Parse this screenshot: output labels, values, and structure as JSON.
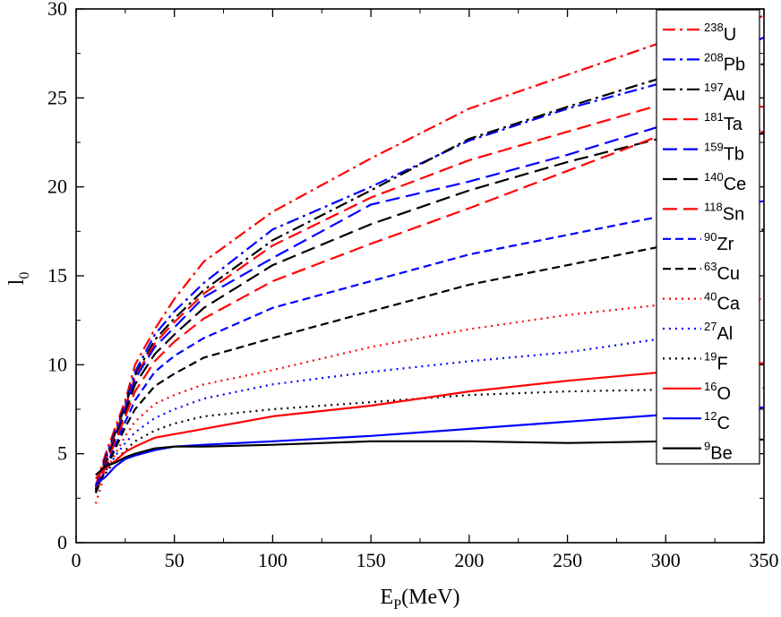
{
  "chart_data": {
    "type": "line",
    "xlabel": "E",
    "xlabel_sub": "P",
    "xlabel_unit": "(MeV)",
    "ylabel": "l",
    "ylabel_sub": "0",
    "xlim": [
      0,
      350
    ],
    "ylim": [
      0,
      30
    ],
    "xticks": [
      0,
      50,
      100,
      150,
      200,
      250,
      300,
      350
    ],
    "yticks": [
      0,
      5,
      10,
      15,
      20,
      25,
      30
    ],
    "legend_position": "top-right",
    "series": [
      {
        "name": "U",
        "mass": "238",
        "color": "#ff0000",
        "dash": "dashdot",
        "x": [
          10,
          15,
          20,
          25,
          30,
          40,
          50,
          65,
          100,
          150,
          200,
          250,
          300,
          350
        ],
        "y": [
          3.2,
          5.0,
          6.5,
          8.0,
          10.0,
          12.0,
          13.7,
          15.8,
          18.6,
          21.6,
          24.4,
          26.3,
          28.2,
          29.6
        ]
      },
      {
        "name": "Pb",
        "mass": "208",
        "color": "#0000ff",
        "dash": "dashdot",
        "x": [
          10,
          15,
          20,
          25,
          30,
          40,
          50,
          65,
          100,
          150,
          200,
          250,
          300,
          350
        ],
        "y": [
          3.1,
          4.8,
          6.3,
          7.8,
          9.6,
          11.7,
          13.0,
          14.6,
          17.6,
          20.0,
          22.6,
          24.4,
          25.9,
          28.4
        ]
      },
      {
        "name": "Au",
        "mass": "197",
        "color": "#000000",
        "dash": "dashdot",
        "x": [
          10,
          15,
          20,
          25,
          30,
          40,
          50,
          65,
          100,
          150,
          200,
          250,
          300,
          350
        ],
        "y": [
          3.0,
          4.7,
          6.2,
          7.7,
          9.4,
          11.4,
          12.6,
          14.2,
          17.0,
          19.8,
          22.7,
          24.5,
          26.2,
          26.9
        ]
      },
      {
        "name": "Ta",
        "mass": "181",
        "color": "#ff0000",
        "dash": "longdash",
        "x": [
          10,
          15,
          20,
          25,
          30,
          40,
          50,
          65,
          100,
          150,
          200,
          250,
          300,
          350
        ],
        "y": [
          3.0,
          4.6,
          6.1,
          7.6,
          9.3,
          11.2,
          12.4,
          14.0,
          16.7,
          19.4,
          21.5,
          23.1,
          24.7,
          24.5
        ]
      },
      {
        "name": "Tb",
        "mass": "159",
        "color": "#0000ff",
        "dash": "longdash",
        "x": [
          10,
          15,
          20,
          25,
          30,
          40,
          50,
          65,
          100,
          150,
          200,
          250,
          300,
          350
        ],
        "y": [
          2.9,
          4.5,
          6.0,
          7.5,
          9.2,
          11.0,
          12.1,
          13.8,
          16.0,
          19.0,
          20.3,
          21.8,
          23.5,
          23.2
        ]
      },
      {
        "name": "Ce",
        "mass": "140",
        "color": "#000000",
        "dash": "longdash",
        "x": [
          10,
          15,
          20,
          25,
          30,
          40,
          50,
          65,
          100,
          150,
          200,
          250,
          300,
          350
        ],
        "y": [
          2.9,
          4.4,
          5.9,
          7.3,
          8.9,
          10.6,
          11.7,
          13.2,
          15.6,
          17.9,
          19.8,
          21.4,
          22.8,
          23.0
        ]
      },
      {
        "name": "Sn",
        "mass": "118",
        "color": "#ff0000",
        "dash": "longdash",
        "x": [
          10,
          15,
          20,
          25,
          30,
          40,
          50,
          65,
          100,
          150,
          200,
          250,
          300,
          350
        ],
        "y": [
          2.8,
          4.3,
          5.7,
          7.1,
          8.5,
          10.2,
          11.3,
          12.6,
          14.7,
          16.8,
          18.8,
          20.9,
          23.0,
          23.1
        ]
      },
      {
        "name": "Zr",
        "mass": "90",
        "color": "#0000ff",
        "dash": "dash",
        "x": [
          10,
          15,
          20,
          25,
          30,
          40,
          50,
          65,
          100,
          150,
          200,
          250,
          300,
          350
        ],
        "y": [
          2.8,
          4.2,
          5.5,
          6.8,
          8.0,
          9.6,
          10.5,
          11.5,
          13.2,
          14.7,
          16.2,
          17.3,
          18.4,
          19.2
        ]
      },
      {
        "name": "Cu",
        "mass": "63",
        "color": "#000000",
        "dash": "dash",
        "x": [
          10,
          15,
          20,
          25,
          30,
          40,
          50,
          65,
          100,
          150,
          200,
          250,
          300,
          350
        ],
        "y": [
          2.8,
          4.1,
          5.3,
          6.5,
          7.5,
          8.8,
          9.5,
          10.4,
          11.5,
          13.0,
          14.5,
          15.6,
          16.7,
          17.6
        ]
      },
      {
        "name": "Ca",
        "mass": "40",
        "color": "#ff0000",
        "dash": "dot",
        "x": [
          10,
          15,
          20,
          25,
          30,
          40,
          50,
          65,
          100,
          150,
          200,
          250,
          300,
          350
        ],
        "y": [
          2.2,
          4.0,
          5.0,
          6.0,
          6.8,
          7.8,
          8.3,
          8.9,
          9.7,
          11.0,
          12.0,
          12.8,
          13.4,
          13.7
        ]
      },
      {
        "name": "Al",
        "mass": "27",
        "color": "#0000ff",
        "dash": "dot",
        "x": [
          10,
          15,
          20,
          25,
          30,
          40,
          50,
          65,
          100,
          150,
          200,
          250,
          300,
          350
        ],
        "y": [
          3.2,
          4.0,
          4.9,
          5.6,
          6.2,
          7.0,
          7.5,
          8.1,
          8.9,
          9.6,
          10.2,
          10.7,
          11.5,
          12.2
        ]
      },
      {
        "name": "F",
        "mass": "19",
        "color": "#000000",
        "dash": "dot",
        "x": [
          10,
          15,
          20,
          25,
          30,
          40,
          50,
          65,
          100,
          150,
          200,
          250,
          300,
          350
        ],
        "y": [
          3.0,
          3.9,
          4.6,
          5.2,
          5.7,
          6.3,
          6.7,
          7.1,
          7.5,
          7.9,
          8.3,
          8.5,
          8.6,
          8.7
        ]
      },
      {
        "name": "O",
        "mass": "16",
        "color": "#ff0000",
        "dash": "solid",
        "x": [
          10,
          15,
          20,
          25,
          30,
          40,
          50,
          65,
          100,
          150,
          200,
          250,
          300,
          350
        ],
        "y": [
          3.6,
          4.2,
          4.6,
          5.1,
          5.4,
          5.9,
          6.1,
          6.4,
          7.1,
          7.7,
          8.5,
          9.1,
          9.6,
          10.1
        ]
      },
      {
        "name": "C",
        "mass": "12",
        "color": "#0000ff",
        "dash": "solid",
        "x": [
          10,
          15,
          20,
          25,
          30,
          40,
          50,
          65,
          100,
          150,
          200,
          250,
          300,
          350
        ],
        "y": [
          3.3,
          3.7,
          4.3,
          4.7,
          4.9,
          5.2,
          5.4,
          5.5,
          5.7,
          6.0,
          6.4,
          6.8,
          7.2,
          7.6
        ]
      },
      {
        "name": "Be",
        "mass": "9",
        "color": "#000000",
        "dash": "solid",
        "x": [
          10,
          15,
          20,
          25,
          30,
          40,
          50,
          65,
          100,
          150,
          200,
          250,
          300,
          350
        ],
        "y": [
          3.8,
          4.3,
          4.5,
          4.8,
          5.0,
          5.3,
          5.4,
          5.4,
          5.5,
          5.7,
          5.7,
          5.6,
          5.7,
          5.8
        ]
      }
    ]
  }
}
